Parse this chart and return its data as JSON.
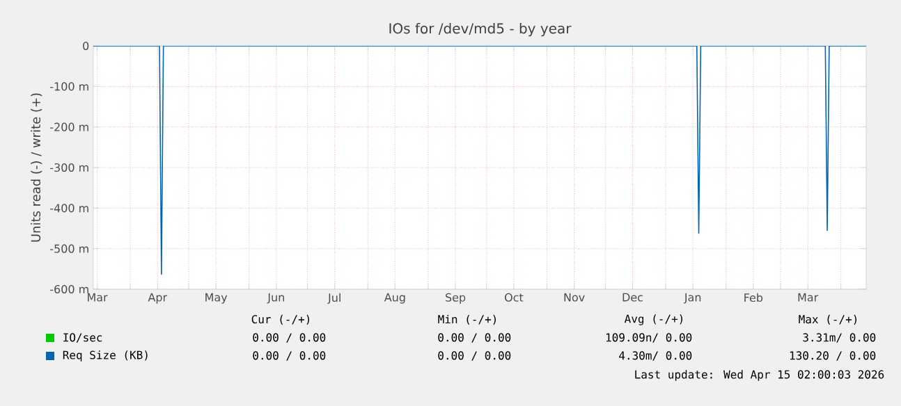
{
  "chart_data": {
    "type": "line",
    "title": "IOs for /dev/md5 - by year",
    "ylabel": "Units read (-) / write (+)",
    "series": [
      {
        "name": "IO/sec",
        "color": "#00cc00"
      },
      {
        "name": "Req Size (KB)",
        "color": "#0066b3",
        "x": [
          "2025-03-13",
          "2025-04-16",
          "2025-04-17",
          "2025-04-18",
          "2026-01-17",
          "2026-01-18",
          "2026-01-19",
          "2026-03-24",
          "2026-03-25",
          "2026-03-26",
          "2026-04-14"
        ],
        "values": [
          0,
          0,
          -563,
          0,
          0,
          -462,
          0,
          0,
          -455,
          0,
          0
        ]
      }
    ],
    "xlim": [
      "2025-03-13",
      "2026-04-14"
    ],
    "xticks": [
      {
        "value": "2025-03-15",
        "label": "Mar"
      },
      {
        "value": "2025-04-01",
        "label": null
      },
      {
        "value": "2025-04-15",
        "label": "Apr"
      },
      {
        "value": "2025-05-01",
        "label": null
      },
      {
        "value": "2025-05-15",
        "label": "May"
      },
      {
        "value": "2025-06-01",
        "label": null
      },
      {
        "value": "2025-06-15",
        "label": "Jun"
      },
      {
        "value": "2025-07-01",
        "label": null
      },
      {
        "value": "2025-07-15",
        "label": "Jul"
      },
      {
        "value": "2025-08-01",
        "label": null
      },
      {
        "value": "2025-08-15",
        "label": "Aug"
      },
      {
        "value": "2025-09-01",
        "label": null
      },
      {
        "value": "2025-09-15",
        "label": "Sep"
      },
      {
        "value": "2025-10-01",
        "label": null
      },
      {
        "value": "2025-10-15",
        "label": "Oct"
      },
      {
        "value": "2025-11-01",
        "label": null
      },
      {
        "value": "2025-11-15",
        "label": "Nov"
      },
      {
        "value": "2025-12-01",
        "label": null
      },
      {
        "value": "2025-12-15",
        "label": "Dec"
      },
      {
        "value": "2026-01-01",
        "label": null
      },
      {
        "value": "2026-01-15",
        "label": "Jan"
      },
      {
        "value": "2026-02-01",
        "label": null
      },
      {
        "value": "2026-02-15",
        "label": "Feb"
      },
      {
        "value": "2026-03-01",
        "label": null
      },
      {
        "value": "2026-03-15",
        "label": "Mar"
      },
      {
        "value": "2026-04-01",
        "label": null
      }
    ],
    "ylim": [
      -600,
      0
    ],
    "yticks": [
      {
        "value": -600,
        "label": "-600 m"
      },
      {
        "value": -500,
        "label": "-500 m"
      },
      {
        "value": -400,
        "label": "-400 m"
      },
      {
        "value": -300,
        "label": "-300 m"
      },
      {
        "value": -200,
        "label": "-200 m"
      },
      {
        "value": -100,
        "label": "-100 m"
      },
      {
        "value": 0,
        "label": "0"
      }
    ],
    "grid": true,
    "legend": "bottom",
    "annotations": [
      "Cur (-/+)",
      "Min (-/+)",
      "Avg (-/+)",
      "Max (-/+)",
      "0.00 / 0.00",
      "0.00 / 0.00",
      "109.09n/ 0.00",
      "3.31m/ 0.00",
      "0.00 / 0.00",
      "0.00 / 0.00",
      "4.30m/ 0.00",
      "130.20 / 0.00",
      "Last update: Wed Apr 15 02:00:03 2026"
    ]
  }
}
